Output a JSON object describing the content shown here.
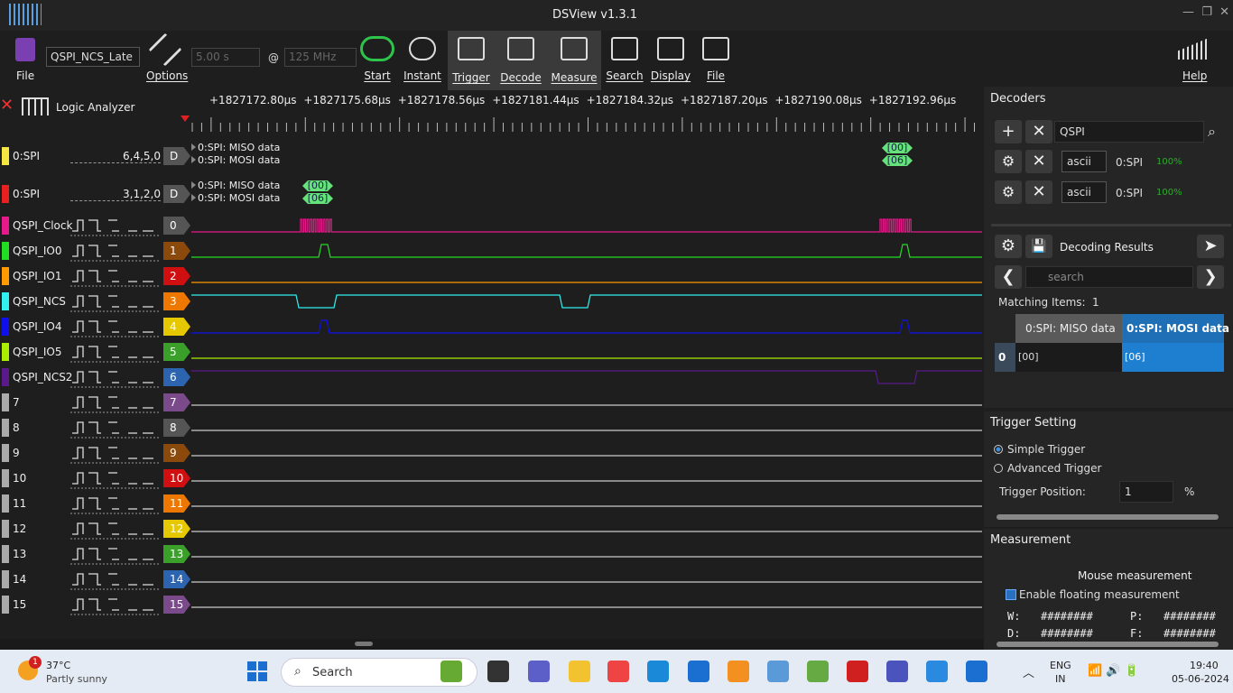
{
  "window": {
    "title": "DSView v1.3.1"
  },
  "toolbar": {
    "file": "File",
    "session": "QSPI_NCS_Late",
    "options": "Options",
    "duration": "5.00 s",
    "at": "@",
    "rate": "125 MHz",
    "buttons": [
      "Start",
      "Instant",
      "Trigger",
      "Decode",
      "Measure",
      "Search",
      "Display",
      "File"
    ],
    "help": "Help"
  },
  "mode": "Logic Analyzer",
  "timeline": [
    "+1827172.80µs",
    "+1827175.68µs",
    "+1827178.56µs",
    "+1827181.44µs",
    "+1827184.32µs",
    "+1827187.20µs",
    "+1827190.08µs",
    "+1827192.96µs"
  ],
  "decoder_rows": [
    {
      "name": "0:SPI",
      "pins": "6,4,5,0",
      "badge": "D",
      "color": "#f5e642",
      "lines": [
        "0:SPI: MISO data",
        "0:SPI: MOSI data"
      ],
      "annotations": [
        "[00]",
        "[06]"
      ]
    },
    {
      "name": "0:SPI",
      "pins": "3,1,2,0",
      "badge": "D",
      "color": "#e82020",
      "lines": [
        "0:SPI: MISO data",
        "0:SPI: MOSI data"
      ],
      "annotations": [
        "[00]",
        "[06]"
      ]
    }
  ],
  "channels": [
    {
      "name": "QSPI_Clock",
      "index": "0",
      "color": "#e8198b",
      "badge_color": "#555555"
    },
    {
      "name": "QSPI_IO0",
      "index": "1",
      "color": "#22dd22",
      "badge_color": "#8b4a0c"
    },
    {
      "name": "QSPI_IO1",
      "index": "2",
      "color": "#ff9a00",
      "badge_color": "#d01010"
    },
    {
      "name": "QSPI_NCS",
      "index": "3",
      "color": "#33f0f0",
      "badge_color": "#ee7700"
    },
    {
      "name": "QSPI_IO4",
      "index": "4",
      "color": "#1010ee",
      "badge_color": "#e6c800"
    },
    {
      "name": "QSPI_IO5",
      "index": "5",
      "color": "#aaee00",
      "badge_color": "#3aa02a"
    },
    {
      "name": "QSPI_NCS2",
      "index": "6",
      "color": "#5a1a8c",
      "badge_color": "#2c64b0"
    },
    {
      "name": "7",
      "index": "7",
      "color": "#aaaaaa",
      "badge_color": "#7a4a8a"
    },
    {
      "name": "8",
      "index": "8",
      "color": "#aaaaaa",
      "badge_color": "#555555"
    },
    {
      "name": "9",
      "index": "9",
      "color": "#aaaaaa",
      "badge_color": "#8b4a0c"
    },
    {
      "name": "10",
      "index": "10",
      "color": "#aaaaaa",
      "badge_color": "#d01010"
    },
    {
      "name": "11",
      "index": "11",
      "color": "#aaaaaa",
      "badge_color": "#ee7700"
    },
    {
      "name": "12",
      "index": "12",
      "color": "#aaaaaa",
      "badge_color": "#e6c800"
    },
    {
      "name": "13",
      "index": "13",
      "color": "#aaaaaa",
      "badge_color": "#3aa02a"
    },
    {
      "name": "14",
      "index": "14",
      "color": "#aaaaaa",
      "badge_color": "#2c64b0"
    },
    {
      "name": "15",
      "index": "15",
      "color": "#aaaaaa",
      "badge_color": "#7a4a8a"
    }
  ],
  "decoders": {
    "title": "Decoders",
    "filter": "QSPI",
    "rows": [
      {
        "format": "ascii",
        "name": "0:SPI",
        "progress": "100%"
      },
      {
        "format": "ascii",
        "name": "0:SPI",
        "progress": "100%"
      }
    ],
    "results_title": "Decoding Results",
    "search": "search",
    "matching_label": "Matching Items:",
    "matching": "1",
    "table": {
      "headers": [
        "0:SPI: MISO data",
        "0:SPI: MOSI data"
      ],
      "rows": [
        [
          "0",
          "[00]",
          "[06]"
        ]
      ]
    }
  },
  "trigger": {
    "title": "Trigger Setting",
    "options": [
      "Simple Trigger",
      "Advanced Trigger"
    ],
    "position_label": "Trigger Position:",
    "position": "1",
    "unit": "%"
  },
  "measurement": {
    "title": "Measurement",
    "group": "Mouse measurement",
    "floating": "Enable floating measurement",
    "fields": [
      [
        "W:",
        "########"
      ],
      [
        "P:",
        "########"
      ],
      [
        "D:",
        "########"
      ],
      [
        "F:",
        "########"
      ]
    ]
  },
  "taskbar": {
    "temp": "37°C",
    "weather": "Partly sunny",
    "badge": "1",
    "search": "Search",
    "lang": "ENG",
    "region": "IN",
    "time": "19:40",
    "date": "05-06-2024"
  }
}
